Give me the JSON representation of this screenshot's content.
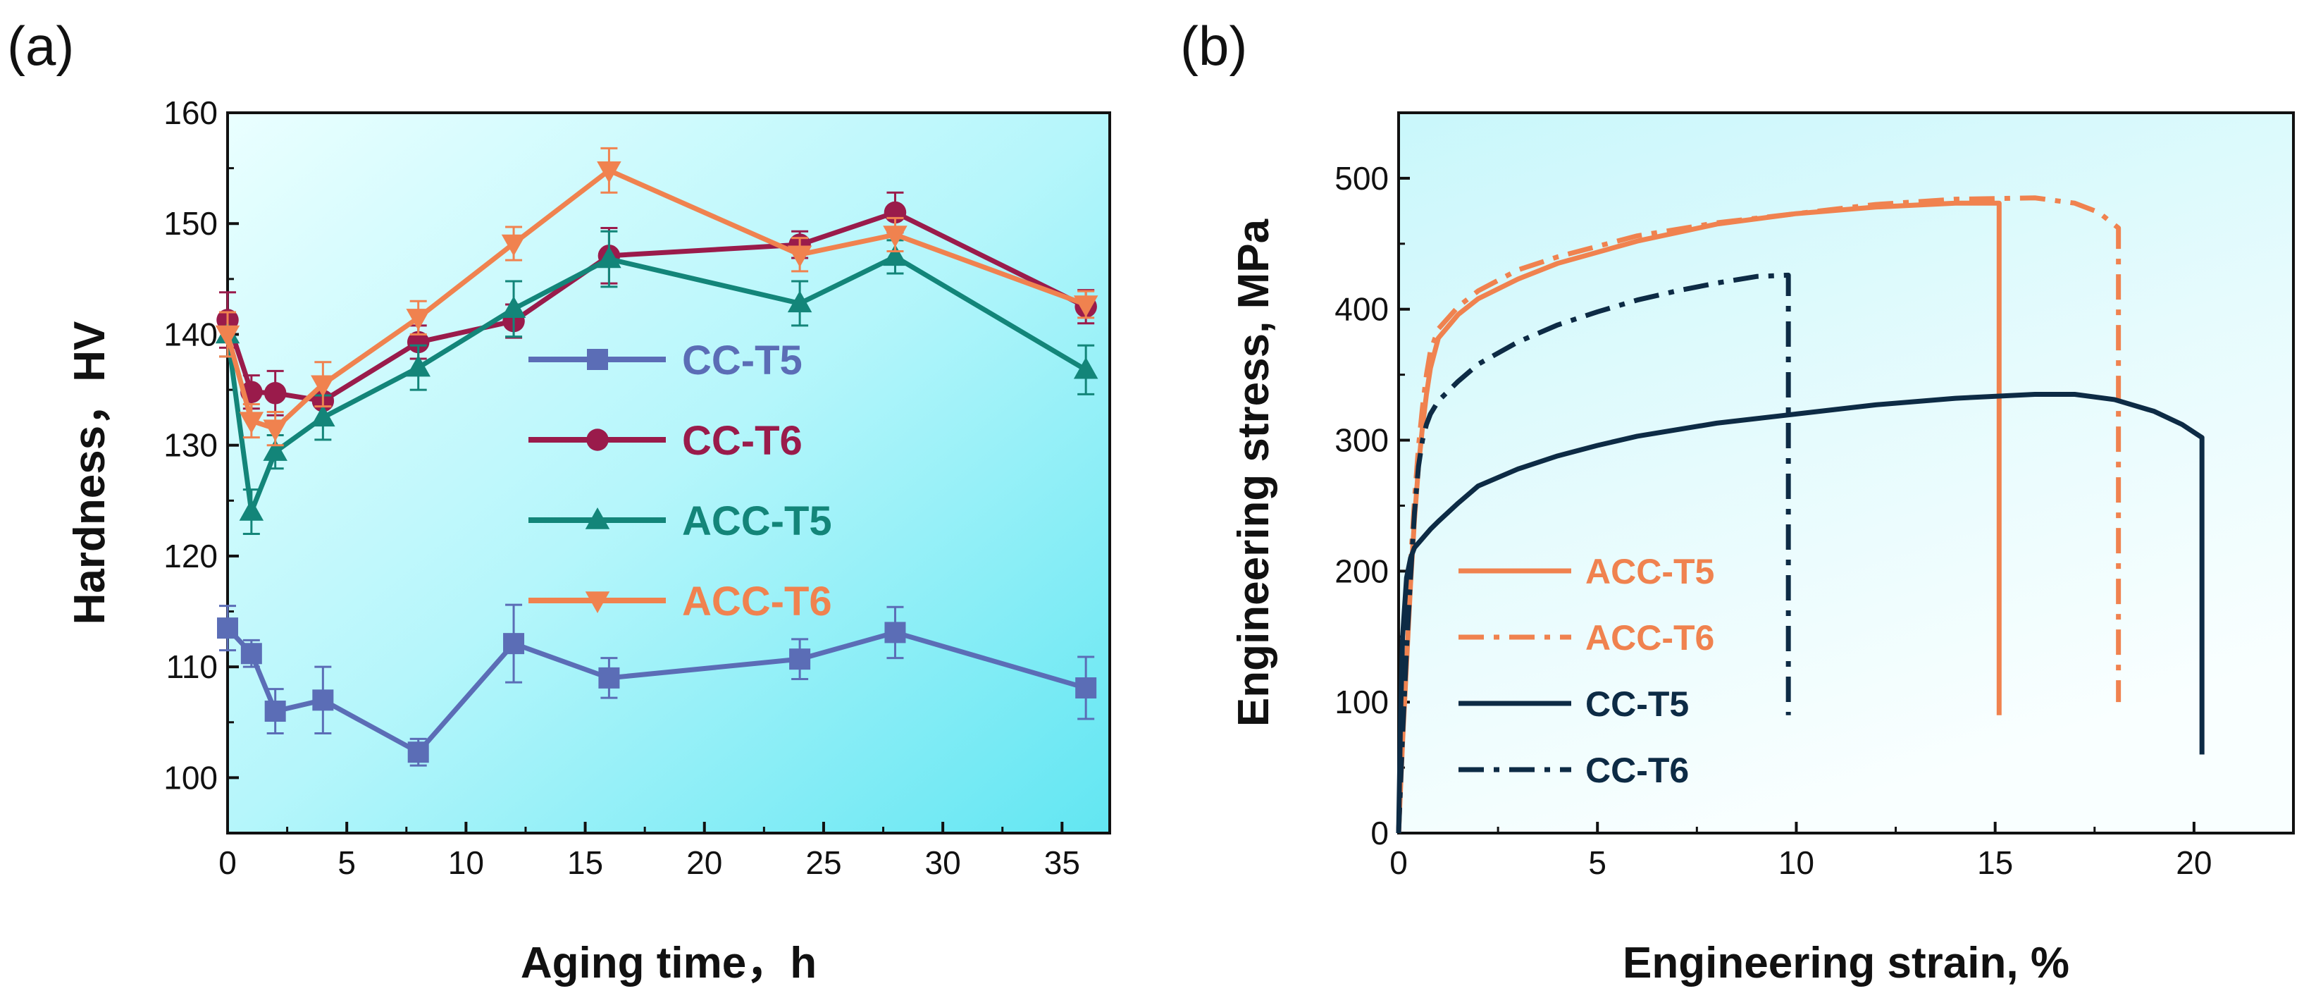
{
  "colors": {
    "cc_t5": "#5b6db6",
    "cc_t6": "#9a1b4b",
    "acc_t5": "#138579",
    "acc_t6": "#f0824f",
    "cc_b": "#0d2b45",
    "frame": "#111111"
  },
  "chart_data": [
    {
      "panel": "(a)",
      "type": "line",
      "xlabel": "Aging time，h",
      "ylabel": "Hardness，HV",
      "xlim": [
        0,
        37
      ],
      "ylim": [
        95,
        160
      ],
      "xticks": [
        0,
        5,
        10,
        15,
        20,
        25,
        30,
        35
      ],
      "yticks": [
        100,
        110,
        120,
        130,
        140,
        150,
        160
      ],
      "x": [
        0,
        1,
        2,
        4,
        8,
        12,
        16,
        24,
        28,
        36
      ],
      "legend_position": "center",
      "series": [
        {
          "name": "CC-T5",
          "marker": "square",
          "values": [
            113.5,
            111.2,
            106.0,
            107.0,
            102.3,
            112.1,
            109.0,
            110.7,
            113.1,
            108.1
          ],
          "errors": [
            2.0,
            1.2,
            2.0,
            3.0,
            1.2,
            3.5,
            1.8,
            1.8,
            2.3,
            2.8
          ]
        },
        {
          "name": "CC-T6",
          "marker": "circle",
          "values": [
            141.3,
            134.8,
            134.7,
            134.0,
            139.3,
            141.2,
            147.1,
            148.1,
            151.0,
            142.5
          ],
          "errors": [
            2.5,
            1.5,
            2.0,
            2.0,
            1.5,
            1.5,
            2.5,
            1.2,
            1.8,
            1.5
          ]
        },
        {
          "name": "ACC-T5",
          "marker": "triangle-up",
          "values": [
            140.0,
            124.0,
            129.4,
            132.5,
            137.0,
            142.3,
            146.8,
            142.8,
            147.0,
            136.8
          ],
          "errors": [
            2.0,
            2.0,
            1.5,
            2.0,
            2.0,
            2.5,
            2.5,
            2.0,
            1.5,
            2.2
          ]
        },
        {
          "name": "ACC-T6",
          "marker": "triangle-down",
          "values": [
            140.0,
            132.2,
            131.5,
            135.5,
            141.5,
            148.2,
            154.8,
            147.2,
            149.0,
            142.7
          ],
          "errors": [
            2.0,
            1.5,
            1.5,
            2.0,
            1.5,
            1.5,
            2.0,
            1.5,
            1.5,
            1.2
          ]
        }
      ]
    },
    {
      "panel": "(b)",
      "type": "line",
      "xlabel": "Engineering strain, %",
      "ylabel": "Engineering stress, MPa",
      "xlim": [
        0,
        22.5
      ],
      "ylim": [
        0,
        550
      ],
      "xticks": [
        0,
        5,
        10,
        15,
        20
      ],
      "yticks": [
        0,
        100,
        200,
        300,
        400,
        500
      ],
      "legend_position": "bottom-left",
      "series": [
        {
          "name": "ACC-T5",
          "style": "solid",
          "x": [
            0,
            0.1,
            0.2,
            0.3,
            0.4,
            0.5,
            0.6,
            0.7,
            0.8,
            1.0,
            1.5,
            2,
            3,
            4,
            6,
            8,
            10,
            12,
            14,
            15.1,
            15.1
          ],
          "values": [
            0,
            70,
            130,
            190,
            240,
            280,
            310,
            335,
            355,
            378,
            396,
            408,
            423,
            435,
            452,
            465,
            473,
            478,
            481,
            481,
            90
          ]
        },
        {
          "name": "ACC-T6",
          "style": "dashdot",
          "x": [
            0,
            0.1,
            0.2,
            0.3,
            0.4,
            0.5,
            0.6,
            0.7,
            0.8,
            1.0,
            1.5,
            2,
            3,
            4,
            6,
            8,
            10,
            12,
            14,
            16,
            17,
            17.6,
            18.1,
            18.1
          ],
          "values": [
            0,
            80,
            145,
            205,
            255,
            295,
            325,
            350,
            368,
            385,
            402,
            414,
            430,
            440,
            456,
            466,
            473,
            480,
            484,
            485,
            481,
            474,
            462,
            100
          ]
        },
        {
          "name": "CC-T5",
          "style": "solid",
          "x": [
            0,
            0.05,
            0.1,
            0.2,
            0.3,
            0.4,
            0.6,
            0.8,
            1.0,
            1.5,
            2,
            3,
            4,
            5,
            6,
            8,
            10,
            12,
            14,
            16,
            17,
            18,
            19,
            19.7,
            20.2,
            20.2
          ],
          "values": [
            0,
            90,
            150,
            195,
            210,
            218,
            225,
            232,
            238,
            252,
            265,
            278,
            288,
            296,
            303,
            313,
            320,
            327,
            332,
            335,
            335,
            331,
            322,
            312,
            302,
            60
          ]
        },
        {
          "name": "CC-T6",
          "style": "dashdot",
          "x": [
            0,
            0.1,
            0.2,
            0.3,
            0.4,
            0.5,
            0.6,
            0.7,
            0.8,
            1.0,
            1.5,
            2,
            3,
            4,
            5,
            6,
            7,
            8,
            9,
            9.8,
            9.8
          ],
          "values": [
            0,
            75,
            140,
            195,
            245,
            280,
            300,
            312,
            320,
            330,
            345,
            358,
            375,
            388,
            398,
            407,
            414,
            420,
            425,
            426,
            90
          ]
        }
      ]
    }
  ]
}
